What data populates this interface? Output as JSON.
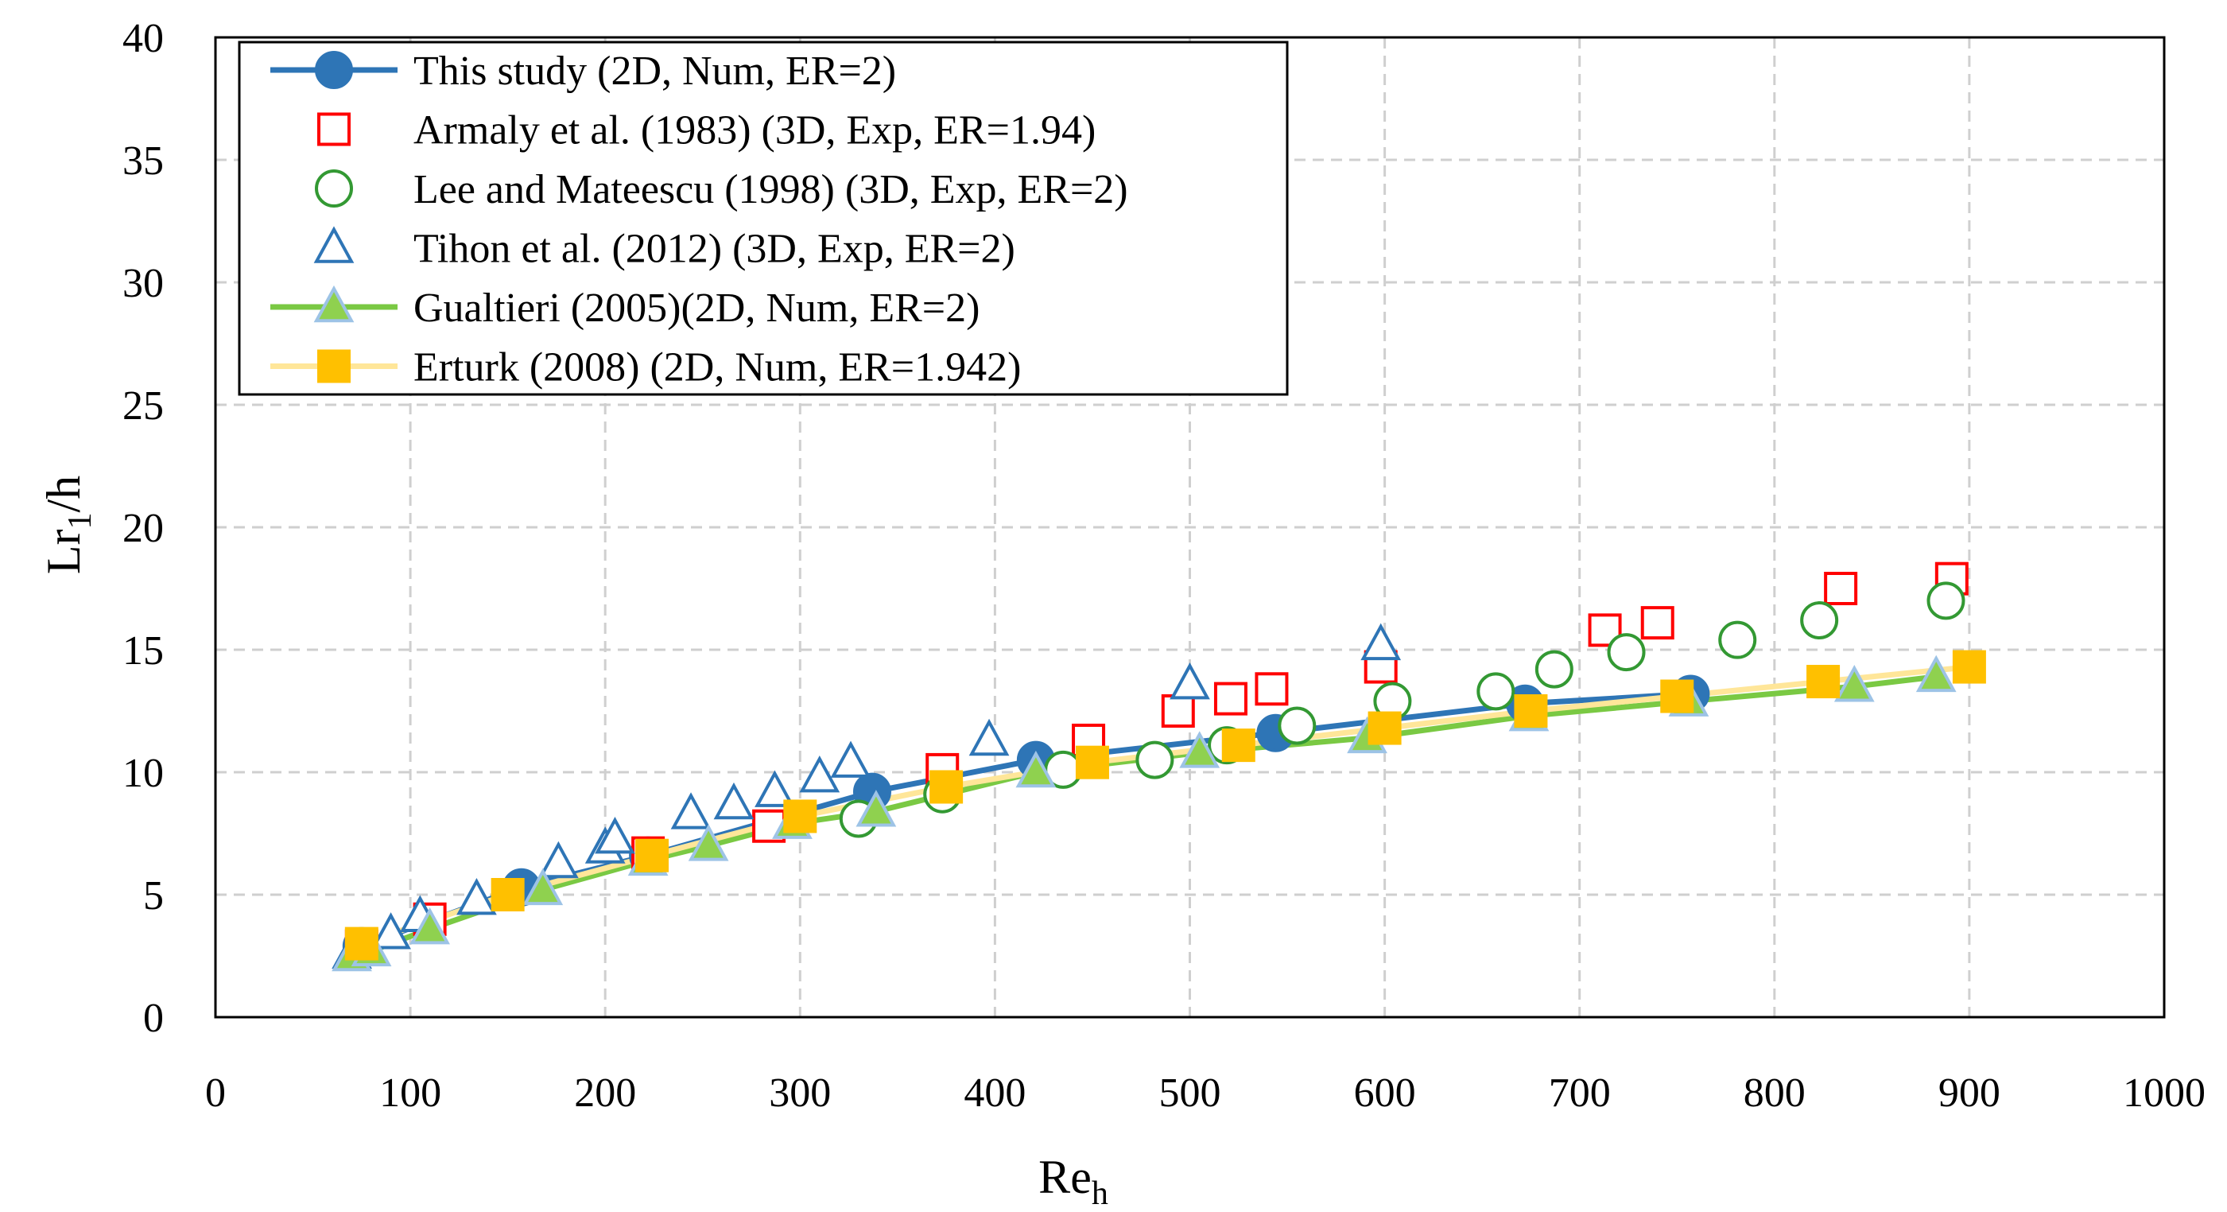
{
  "chart_data": {
    "type": "scatter",
    "title": "",
    "xlabel": {
      "main": "Re",
      "sub": "h"
    },
    "ylabel": {
      "main": "Lr",
      "sub": "1",
      "suffix": "/h"
    },
    "xlim": [
      0,
      1000
    ],
    "ylim": [
      0,
      40
    ],
    "xticks": [
      0,
      100,
      200,
      300,
      400,
      500,
      600,
      700,
      800,
      900,
      1000
    ],
    "yticks": [
      0,
      5,
      10,
      15,
      20,
      25,
      30,
      35,
      40
    ],
    "grid": true,
    "legend_position": "top-left",
    "series": [
      {
        "name": "This study (2D, Num, ER=2)",
        "marker": "circle",
        "filled": true,
        "line": true,
        "color": "#2E75B6",
        "line_color": "#2E75B6",
        "x": [
          75,
          157,
          222,
          337,
          421,
          544,
          672,
          757
        ],
        "y": [
          2.9,
          5.3,
          6.6,
          9.2,
          10.5,
          11.6,
          12.8,
          13.2
        ]
      },
      {
        "name": "Armaly et al. (1983) (3D, Exp, ER=1.94)",
        "marker": "square",
        "filled": false,
        "line": false,
        "color": "#FF0000",
        "x": [
          75,
          110,
          222,
          284,
          373,
          448,
          494,
          521,
          542,
          598,
          713,
          740,
          834,
          891
        ],
        "y": [
          2.9,
          4.0,
          6.7,
          7.8,
          10.1,
          11.3,
          12.5,
          13.0,
          13.4,
          14.3,
          15.8,
          16.1,
          17.5,
          17.9
        ]
      },
      {
        "name": "Lee and Mateescu (1998) (3D, Exp, ER=2)",
        "marker": "circle",
        "filled": false,
        "line": false,
        "color": "#339933",
        "x": [
          330,
          373,
          435,
          482,
          519,
          555,
          604,
          657,
          687,
          724,
          781,
          823,
          888
        ],
        "y": [
          8.1,
          9.1,
          10.1,
          10.5,
          11.1,
          11.9,
          12.9,
          13.3,
          14.2,
          14.9,
          15.4,
          16.2,
          17.0
        ]
      },
      {
        "name": "Tihon et al. (2012) (3D, Exp, ER=2)",
        "marker": "triangle",
        "filled": false,
        "line": false,
        "color": "#2E75B6",
        "x": [
          70,
          90,
          105,
          134,
          176,
          200,
          205,
          244,
          266,
          287,
          310,
          326,
          397,
          500,
          598
        ],
        "y": [
          2.6,
          3.4,
          4.1,
          4.8,
          6.3,
          6.9,
          7.3,
          8.3,
          8.7,
          9.2,
          9.8,
          10.4,
          11.3,
          13.6,
          15.2
        ]
      },
      {
        "name": "Gualtieri (2005)(2D, Num, ER=2)",
        "marker": "triangle",
        "filled": true,
        "line": true,
        "color": "#8FD14F",
        "edge_color": "#9DC3E6",
        "line_color": "#7AC943",
        "x": [
          70,
          80,
          110,
          168,
          222,
          253,
          296,
          339,
          421,
          505,
          591,
          674,
          756,
          841,
          883
        ],
        "y": [
          2.5,
          2.7,
          3.6,
          5.2,
          6.4,
          7.0,
          7.9,
          8.4,
          10.0,
          10.8,
          11.4,
          12.3,
          12.9,
          13.5,
          13.9
        ]
      },
      {
        "name": "Erturk (2008) (2D, Num, ER=1.942)",
        "marker": "square",
        "filled": true,
        "line": true,
        "color": "#FFC000",
        "line_color": "#FFE699",
        "x": [
          75,
          150,
          224,
          300,
          375,
          450,
          525,
          600,
          675,
          750,
          825,
          900
        ],
        "y": [
          3.0,
          5.0,
          6.6,
          8.2,
          9.4,
          10.4,
          11.1,
          11.8,
          12.5,
          13.1,
          13.7,
          14.3
        ]
      }
    ]
  }
}
